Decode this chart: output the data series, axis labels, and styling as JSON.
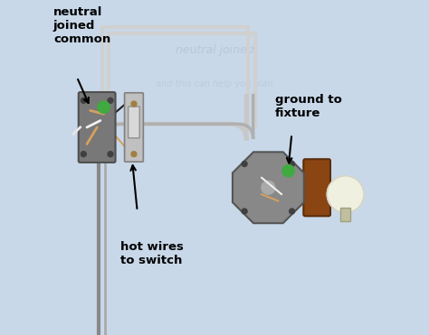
{
  "bg_color": "#c8d8e8",
  "title": "",
  "labels": {
    "neutral_joined_common": "neutral\njoined\ncommon",
    "hot_wires_to_switch": "hot wires\nto switch",
    "ground_to_fixture": "ground to\nfixture"
  },
  "label_positions": {
    "neutral_joined_common": [
      0.04,
      0.82
    ],
    "hot_wires_to_switch": [
      0.28,
      0.28
    ],
    "ground_to_fixture": [
      0.72,
      0.63
    ]
  },
  "arrow_starts": {
    "neutral_joined_common": [
      0.155,
      0.565
    ],
    "hot_wires_to_switch": [
      0.245,
      0.46
    ],
    "ground_to_fixture": [
      0.72,
      0.49
    ]
  },
  "arrow_ends": {
    "neutral_joined_common": [
      0.135,
      0.615
    ],
    "hot_wires_to_switch": [
      0.215,
      0.52
    ],
    "ground_to_fixture": [
      0.72,
      0.43
    ]
  },
  "wire_color_main": "#c0c0c0",
  "wire_color_hot": "#d4a060",
  "wire_color_neutral": "#f0f0f0",
  "wire_color_ground": "#40a040",
  "box_color": "#808080",
  "switch_color": "#c0c0c0",
  "fixture_color": "#909090",
  "bulb_color": "#f0f0e0",
  "lamp_base_color": "#8B4513"
}
